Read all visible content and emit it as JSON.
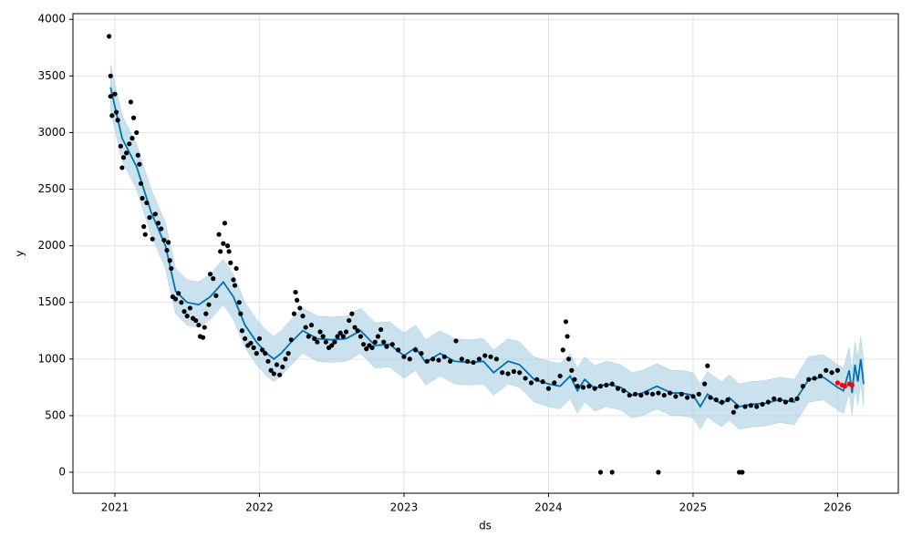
{
  "chart_data": {
    "type": "line",
    "x_label": "ds",
    "y_label": "y",
    "grid": true,
    "xlim": [
      2020.71,
      2026.42
    ],
    "ylim": [
      -185,
      4050
    ],
    "xticks": [
      2021,
      2022,
      2023,
      2024,
      2025,
      2026
    ],
    "yticks": [
      0,
      500,
      1000,
      1500,
      2000,
      2500,
      3000,
      3500,
      4000
    ],
    "series": [
      {
        "style": "band-line",
        "color": "#0072B2",
        "band_color": "#A6CEE3",
        "x": [
          2020.97,
          2021.05,
          2021.15,
          2021.25,
          2021.35,
          2021.42,
          2021.5,
          2021.58,
          2021.66,
          2021.75,
          2021.82,
          2021.9,
          2021.98,
          2022.05,
          2022.1,
          2022.15,
          2022.22,
          2022.3,
          2022.4,
          2022.5,
          2022.6,
          2022.7,
          2022.8,
          2022.9,
          2023.0,
          2023.08,
          2023.15,
          2023.25,
          2023.35,
          2023.45,
          2023.55,
          2023.62,
          2023.72,
          2023.8,
          2023.9,
          2024.0,
          2024.08,
          2024.15,
          2024.2,
          2024.25,
          2024.32,
          2024.4,
          2024.5,
          2024.58,
          2024.65,
          2024.75,
          2024.85,
          2024.92,
          2025.0,
          2025.05,
          2025.1,
          2025.15,
          2025.2,
          2025.25,
          2025.32,
          2025.4,
          2025.5,
          2025.6,
          2025.7,
          2025.8,
          2025.9,
          2026.0,
          2026.04,
          2026.08,
          2026.1,
          2026.12,
          2026.14,
          2026.16,
          2026.18
        ],
        "values": [
          3400,
          2950,
          2700,
          2300,
          2000,
          1600,
          1500,
          1480,
          1550,
          1680,
          1550,
          1300,
          1150,
          1050,
          1000,
          1050,
          1150,
          1250,
          1180,
          1170,
          1180,
          1250,
          1120,
          1130,
          1030,
          1100,
          970,
          1050,
          980,
          970,
          980,
          880,
          980,
          950,
          820,
          780,
          760,
          850,
          720,
          820,
          740,
          780,
          750,
          680,
          700,
          760,
          700,
          700,
          680,
          580,
          690,
          640,
          600,
          660,
          580,
          600,
          610,
          640,
          620,
          820,
          840,
          750,
          720,
          900,
          700,
          950,
          800,
          1000,
          780
        ],
        "lower": [
          3200,
          2750,
          2500,
          2100,
          1800,
          1400,
          1300,
          1280,
          1350,
          1480,
          1350,
          1100,
          950,
          850,
          800,
          850,
          950,
          1050,
          980,
          970,
          980,
          1050,
          920,
          930,
          830,
          900,
          770,
          850,
          780,
          770,
          780,
          680,
          780,
          750,
          620,
          580,
          560,
          650,
          520,
          620,
          540,
          580,
          550,
          480,
          500,
          560,
          500,
          500,
          480,
          380,
          490,
          440,
          400,
          460,
          380,
          400,
          410,
          440,
          420,
          620,
          640,
          550,
          520,
          700,
          500,
          750,
          600,
          800,
          580
        ],
        "upper": [
          3600,
          3150,
          2900,
          2500,
          2200,
          1800,
          1700,
          1680,
          1750,
          1880,
          1750,
          1500,
          1350,
          1250,
          1200,
          1250,
          1350,
          1450,
          1380,
          1370,
          1380,
          1450,
          1320,
          1330,
          1230,
          1300,
          1170,
          1250,
          1180,
          1170,
          1180,
          1080,
          1180,
          1150,
          1020,
          980,
          960,
          1050,
          920,
          1020,
          940,
          980,
          950,
          880,
          900,
          960,
          900,
          900,
          880,
          780,
          890,
          840,
          800,
          860,
          780,
          800,
          810,
          840,
          820,
          1020,
          1040,
          950,
          920,
          1100,
          900,
          1150,
          1000,
          1200,
          980
        ]
      },
      {
        "style": "points",
        "color": "#000000",
        "x": [
          2020.96,
          2020.97,
          2020.97,
          2020.98,
          2021.0,
          2021.01,
          2021.02,
          2021.04,
          2021.05,
          2021.06,
          2021.08,
          2021.1,
          2021.11,
          2021.12,
          2021.13,
          2021.15,
          2021.16,
          2021.17,
          2021.18,
          2021.19,
          2021.2,
          2021.21,
          2021.22,
          2021.24,
          2021.26,
          2021.28,
          2021.3,
          2021.32,
          2021.34,
          2021.36,
          2021.37,
          2021.38,
          2021.39,
          2021.4,
          2021.42,
          2021.44,
          2021.46,
          2021.48,
          2021.5,
          2021.52,
          2021.54,
          2021.56,
          2021.58,
          2021.59,
          2021.61,
          2021.62,
          2021.63,
          2021.65,
          2021.66,
          2021.68,
          2021.7,
          2021.72,
          2021.73,
          2021.75,
          2021.76,
          2021.78,
          2021.79,
          2021.8,
          2021.82,
          2021.83,
          2021.84,
          2021.86,
          2021.87,
          2021.88,
          2021.9,
          2021.92,
          2021.94,
          2021.96,
          2021.98,
          2022.0,
          2022.02,
          2022.04,
          2022.06,
          2022.08,
          2022.1,
          2022.12,
          2022.14,
          2022.16,
          2022.18,
          2022.2,
          2022.22,
          2022.24,
          2022.25,
          2022.26,
          2022.28,
          2022.3,
          2022.32,
          2022.34,
          2022.36,
          2022.38,
          2022.4,
          2022.42,
          2022.44,
          2022.46,
          2022.48,
          2022.5,
          2022.52,
          2022.54,
          2022.56,
          2022.58,
          2022.6,
          2022.62,
          2022.64,
          2022.66,
          2022.68,
          2022.7,
          2022.72,
          2022.74,
          2022.76,
          2022.78,
          2022.8,
          2022.82,
          2022.84,
          2022.86,
          2022.88,
          2022.92,
          2022.96,
          2023.0,
          2023.04,
          2023.08,
          2023.12,
          2023.16,
          2023.2,
          2023.24,
          2023.28,
          2023.32,
          2023.36,
          2023.4,
          2023.44,
          2023.48,
          2023.52,
          2023.56,
          2023.6,
          2023.64,
          2023.68,
          2023.72,
          2023.76,
          2023.8,
          2023.84,
          2023.88,
          2023.92,
          2023.96,
          2024.0,
          2024.04,
          2024.08,
          2024.1,
          2024.12,
          2024.13,
          2024.14,
          2024.16,
          2024.18,
          2024.2,
          2024.24,
          2024.28,
          2024.32,
          2024.36,
          2024.36,
          2024.44,
          2024.4,
          2024.44,
          2024.48,
          2024.52,
          2024.56,
          2024.6,
          2024.64,
          2024.68,
          2024.72,
          2024.76,
          2024.76,
          2024.8,
          2024.84,
          2024.88,
          2024.92,
          2024.96,
          2025.0,
          2025.04,
          2025.08,
          2025.1,
          2025.12,
          2025.16,
          2025.2,
          2025.24,
          2025.28,
          2025.3,
          2025.32,
          2025.34,
          2025.36,
          2025.4,
          2025.44,
          2025.48,
          2025.52,
          2025.56,
          2025.6,
          2025.64,
          2025.68,
          2025.72,
          2025.76,
          2025.8,
          2025.84,
          2025.88,
          2025.92,
          2025.96,
          2026.0
        ],
        "values": [
          3850,
          3500,
          3320,
          3150,
          3340,
          3180,
          3110,
          2880,
          2690,
          2780,
          2820,
          2900,
          3270,
          2950,
          3130,
          3000,
          2800,
          2720,
          2550,
          2420,
          2170,
          2100,
          2380,
          2250,
          2060,
          2280,
          2200,
          2150,
          2050,
          1960,
          2030,
          1870,
          1800,
          1550,
          1530,
          1580,
          1500,
          1420,
          1380,
          1450,
          1360,
          1340,
          1300,
          1200,
          1190,
          1280,
          1400,
          1480,
          1750,
          1710,
          1560,
          2100,
          1950,
          2020,
          2200,
          2000,
          1950,
          1850,
          1700,
          1650,
          1800,
          1500,
          1400,
          1250,
          1180,
          1120,
          1140,
          1100,
          1050,
          1180,
          1080,
          1050,
          980,
          900,
          870,
          950,
          860,
          930,
          1000,
          1050,
          1170,
          1400,
          1590,
          1520,
          1450,
          1380,
          1280,
          1200,
          1300,
          1180,
          1150,
          1240,
          1200,
          1150,
          1100,
          1120,
          1150,
          1200,
          1230,
          1200,
          1240,
          1340,
          1400,
          1280,
          1250,
          1200,
          1130,
          1090,
          1120,
          1100,
          1150,
          1200,
          1260,
          1150,
          1110,
          1130,
          1080,
          1020,
          1000,
          1080,
          1050,
          980,
          1000,
          990,
          1020,
          980,
          1160,
          1000,
          980,
          970,
          1000,
          1030,
          1020,
          1000,
          880,
          870,
          890,
          880,
          830,
          790,
          820,
          800,
          740,
          790,
          850,
          1080,
          1330,
          1200,
          1000,
          900,
          820,
          760,
          750,
          760,
          740,
          760,
          0,
          0,
          770,
          780,
          740,
          720,
          680,
          690,
          680,
          700,
          690,
          0,
          700,
          680,
          700,
          670,
          690,
          660,
          670,
          690,
          780,
          940,
          660,
          640,
          620,
          640,
          530,
          580,
          0,
          0,
          580,
          590,
          580,
          600,
          620,
          650,
          640,
          620,
          640,
          650,
          760,
          820,
          830,
          850,
          900,
          880,
          900
        ]
      },
      {
        "style": "points",
        "color": "#ff0000",
        "x": [
          2026.0,
          2026.03,
          2026.05,
          2026.08,
          2026.1
        ],
        "values": [
          790,
          770,
          760,
          780,
          770
        ]
      }
    ]
  }
}
